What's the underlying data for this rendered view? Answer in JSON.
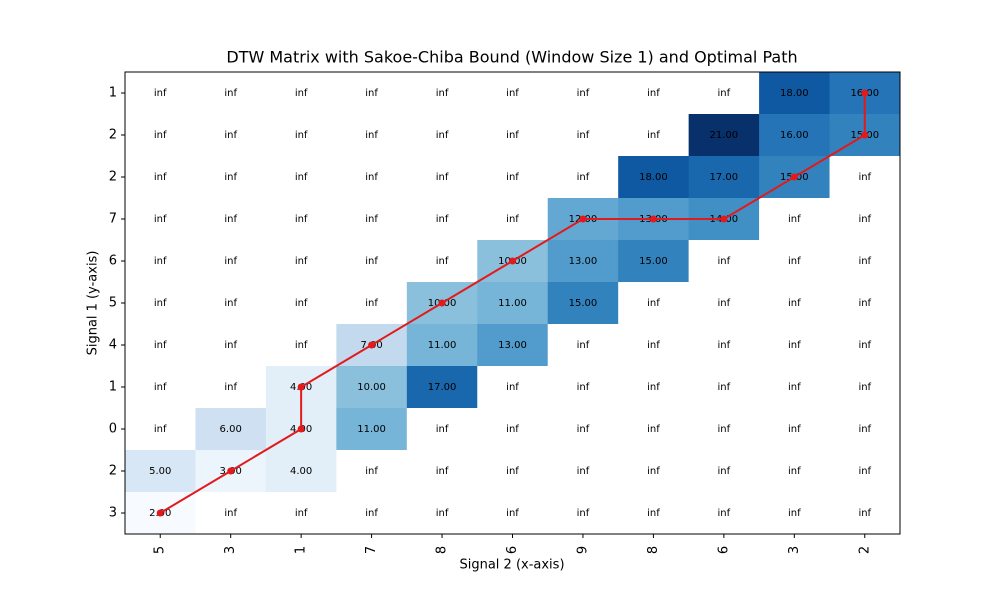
{
  "chart_data": {
    "type": "heatmap",
    "title": "DTW Matrix with Sakoe-Chiba Bound (Window Size 1) and Optimal Path",
    "x_label": "Signal 2 (x-axis)",
    "y_label": "Signal 1 (y-axis)",
    "categories": [
      "5",
      "3",
      "1",
      "7",
      "8",
      "6",
      "9",
      "8",
      "6",
      "3",
      "2"
    ],
    "y_categories": [
      "1",
      "2",
      "2",
      "7",
      "6",
      "5",
      "4",
      "1",
      "0",
      "2",
      "3"
    ],
    "colormap": "Blues",
    "missing_color": "#ffffff",
    "values": [
      [
        null,
        null,
        null,
        null,
        null,
        null,
        null,
        null,
        null,
        18,
        16
      ],
      [
        null,
        null,
        null,
        null,
        null,
        null,
        null,
        null,
        21,
        16,
        15
      ],
      [
        null,
        null,
        null,
        null,
        null,
        null,
        null,
        18,
        17,
        15,
        null
      ],
      [
        null,
        null,
        null,
        null,
        null,
        null,
        12,
        13,
        14,
        null,
        null
      ],
      [
        null,
        null,
        null,
        null,
        null,
        10,
        13,
        15,
        null,
        null,
        null
      ],
      [
        null,
        null,
        null,
        null,
        10,
        11,
        15,
        null,
        null,
        null,
        null
      ],
      [
        null,
        null,
        null,
        7,
        11,
        13,
        null,
        null,
        null,
        null,
        null
      ],
      [
        null,
        null,
        4,
        10,
        17,
        null,
        null,
        null,
        null,
        null,
        null
      ],
      [
        null,
        6,
        4,
        11,
        null,
        null,
        null,
        null,
        null,
        null,
        null
      ],
      [
        5,
        3,
        4,
        null,
        null,
        null,
        null,
        null,
        null,
        null,
        null
      ],
      [
        2,
        null,
        null,
        null,
        null,
        null,
        null,
        null,
        null,
        null,
        null
      ]
    ],
    "value_labels": [
      [
        "inf",
        "inf",
        "inf",
        "inf",
        "inf",
        "inf",
        "inf",
        "inf",
        "inf",
        "18.00",
        "16.00"
      ],
      [
        "inf",
        "inf",
        "inf",
        "inf",
        "inf",
        "inf",
        "inf",
        "inf",
        "21.00",
        "16.00",
        "15.00"
      ],
      [
        "inf",
        "inf",
        "inf",
        "inf",
        "inf",
        "inf",
        "inf",
        "18.00",
        "17.00",
        "15.00",
        "inf"
      ],
      [
        "inf",
        "inf",
        "inf",
        "inf",
        "inf",
        "inf",
        "12.00",
        "13.00",
        "14.00",
        "inf",
        "inf"
      ],
      [
        "inf",
        "inf",
        "inf",
        "inf",
        "inf",
        "10.00",
        "13.00",
        "15.00",
        "inf",
        "inf",
        "inf"
      ],
      [
        "inf",
        "inf",
        "inf",
        "inf",
        "10.00",
        "11.00",
        "15.00",
        "inf",
        "inf",
        "inf",
        "inf"
      ],
      [
        "inf",
        "inf",
        "inf",
        "7.00",
        "11.00",
        "13.00",
        "inf",
        "inf",
        "inf",
        "inf",
        "inf"
      ],
      [
        "inf",
        "inf",
        "4.00",
        "10.00",
        "17.00",
        "inf",
        "inf",
        "inf",
        "inf",
        "inf",
        "inf"
      ],
      [
        "inf",
        "6.00",
        "4.00",
        "11.00",
        "inf",
        "inf",
        "inf",
        "inf",
        "inf",
        "inf",
        "inf"
      ],
      [
        "5.00",
        "3.00",
        "4.00",
        "inf",
        "inf",
        "inf",
        "inf",
        "inf",
        "inf",
        "inf",
        "inf"
      ],
      [
        "2.00",
        "inf",
        "inf",
        "inf",
        "inf",
        "inf",
        "inf",
        "inf",
        "inf",
        "inf",
        "inf"
      ]
    ],
    "path": {
      "color": "#e31a1c",
      "x": [
        0,
        1,
        2,
        2,
        3,
        4,
        5,
        6,
        7,
        8,
        9,
        10,
        10
      ],
      "y": [
        10,
        9,
        8,
        7,
        6,
        5,
        4,
        3,
        3,
        3,
        2,
        1,
        0
      ]
    }
  }
}
